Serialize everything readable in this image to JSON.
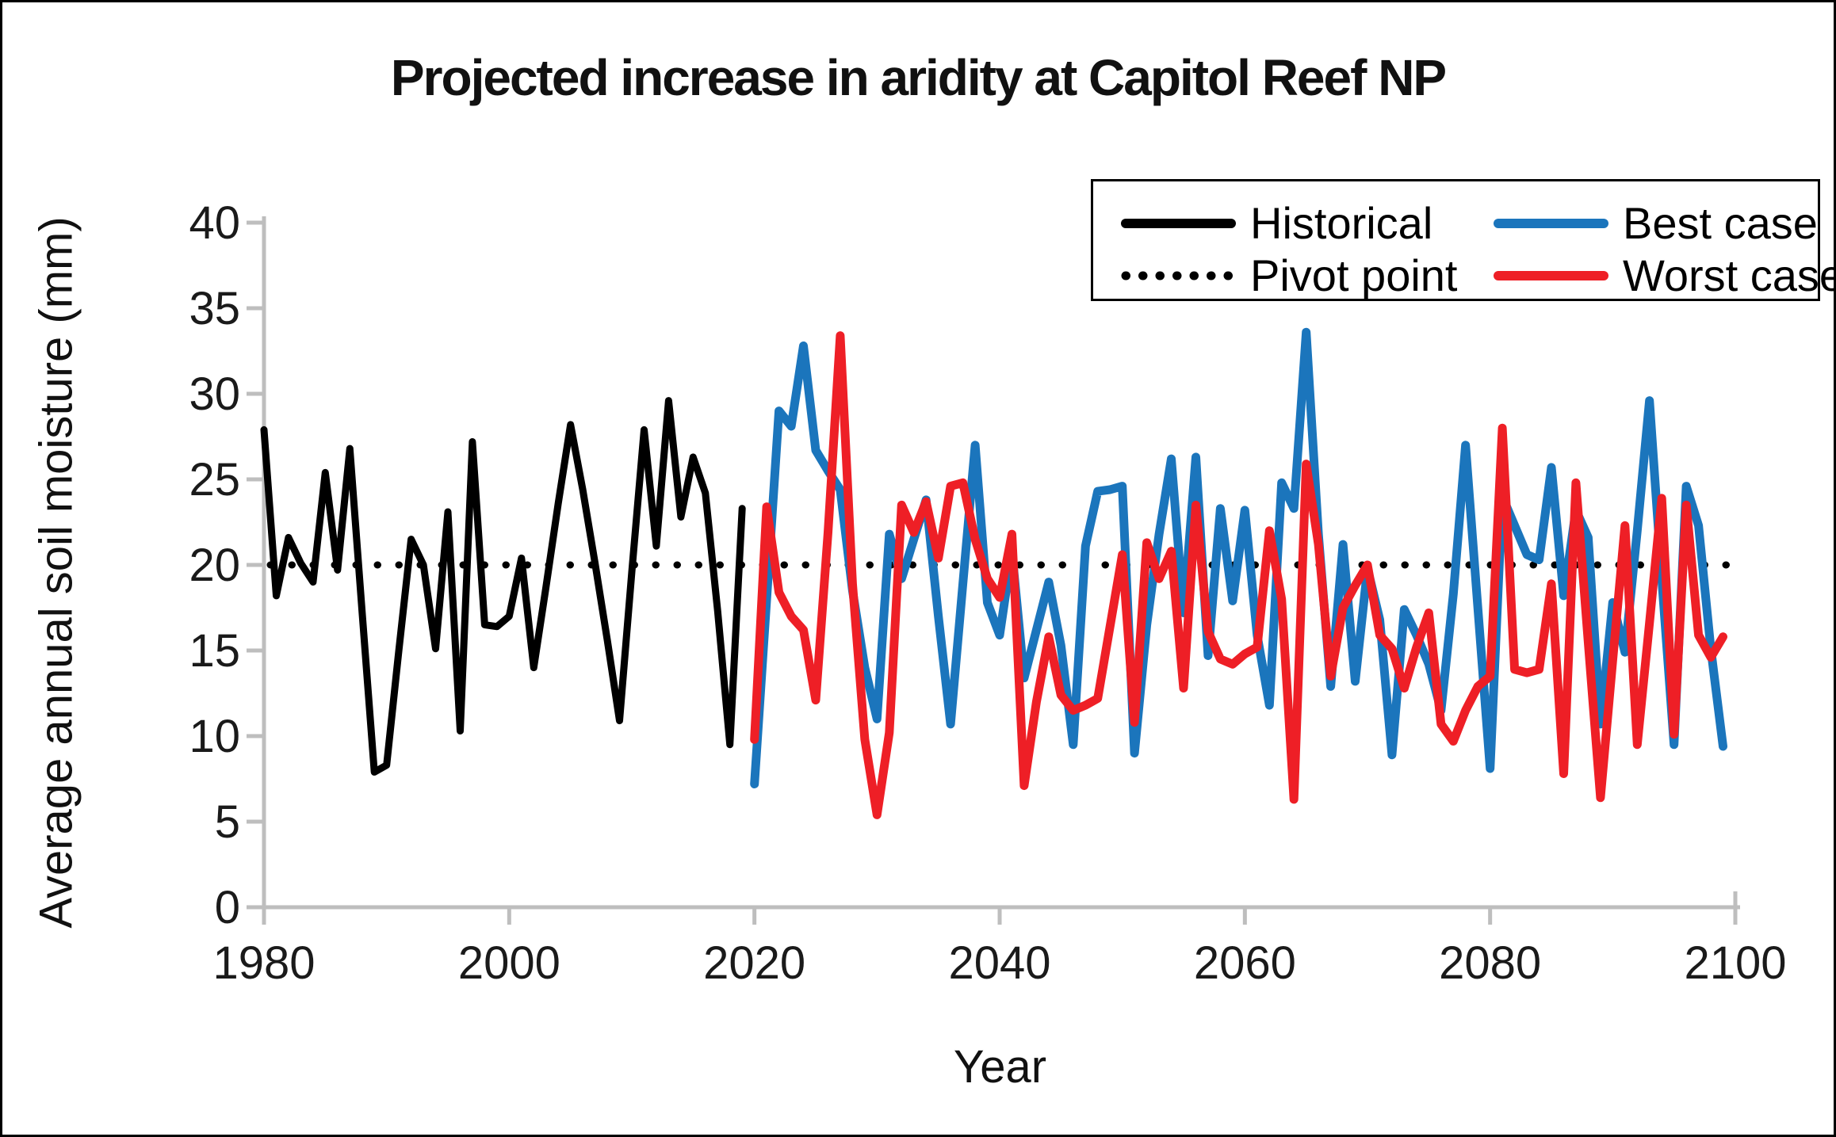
{
  "header": {
    "title": "Projected increase in aridity at Capitol Reef NP"
  },
  "axes": {
    "y_title": "Average annual soil moisture (mm)",
    "x_title": "Year"
  },
  "chart_data": {
    "type": "line",
    "title": "Projected increase in aridity at Capitol Reef NP",
    "xlabel": "Year",
    "ylabel": "Average annual soil moisture (mm)",
    "xlim": [
      1980,
      2100
    ],
    "ylim": [
      0,
      40
    ],
    "x_ticks": [
      1980,
      2000,
      2020,
      2040,
      2060,
      2080,
      2100
    ],
    "y_ticks": [
      0,
      5,
      10,
      15,
      20,
      25,
      30,
      35,
      40
    ],
    "grid": false,
    "legend_position": "top-right",
    "axis_color": "#bebebe",
    "tick_label_color": "#1a1a1a",
    "series": [
      {
        "name": "Historical",
        "color": "#000000",
        "style": "solid",
        "start_year": 1980,
        "values": [
          27.9,
          18.2,
          21.6,
          20.1,
          19.0,
          25.4,
          19.7,
          26.8,
          17.3,
          7.9,
          8.3,
          15.0,
          21.5,
          20.0,
          15.1,
          23.1,
          10.3,
          27.2,
          16.5,
          16.4,
          17.0,
          20.4,
          14.0,
          18.7,
          23.6,
          28.2,
          24.4,
          20.1,
          15.6,
          10.9,
          19.6,
          27.9,
          21.1,
          29.6,
          22.8,
          26.3,
          24.2,
          17.3,
          9.5,
          23.3
        ]
      },
      {
        "name": "Pivot point",
        "color": "#000000",
        "style": "dotted",
        "value": 20
      },
      {
        "name": "Best case",
        "color": "#1b75bc",
        "style": "solid",
        "start_year": 2020,
        "values": [
          7.2,
          18.0,
          29.0,
          28.1,
          32.8,
          26.7,
          25.5,
          24.4,
          18.5,
          14.0,
          11.0,
          21.8,
          19.2,
          21.5,
          23.8,
          17.0,
          10.7,
          18.9,
          27.0,
          17.8,
          15.9,
          20.8,
          13.4,
          16.2,
          19.0,
          15.3,
          9.5,
          21.1,
          24.3,
          24.4,
          24.6,
          9.0,
          16.5,
          21.8,
          26.2,
          17.2,
          26.3,
          14.7,
          23.3,
          17.9,
          23.2,
          15.9,
          11.8,
          24.8,
          23.3,
          33.6,
          21.8,
          12.9,
          21.2,
          13.2,
          19.8,
          16.8,
          8.9,
          17.4,
          15.9,
          14.2,
          11.5,
          18.3,
          27.0,
          17.5,
          8.1,
          24.0,
          22.3,
          20.6,
          20.3,
          25.7,
          18.2,
          23.2,
          21.6,
          10.7,
          17.8,
          14.9,
          22.0,
          29.6,
          19.2,
          9.5,
          24.6,
          22.3,
          15.1,
          9.4
        ]
      },
      {
        "name": "Worst case",
        "color": "#ee1f26",
        "style": "solid",
        "start_year": 2020,
        "values": [
          9.8,
          23.4,
          18.4,
          17.0,
          16.2,
          12.1,
          21.9,
          33.4,
          18.9,
          9.8,
          5.4,
          10.2,
          23.5,
          21.9,
          23.7,
          20.4,
          24.6,
          24.8,
          21.5,
          19.2,
          18.1,
          21.8,
          7.1,
          12.0,
          15.8,
          12.4,
          11.5,
          11.8,
          12.2,
          16.4,
          20.6,
          10.8,
          21.3,
          19.2,
          20.8,
          12.8,
          23.5,
          16.1,
          14.5,
          14.2,
          14.8,
          15.2,
          22.0,
          18.0,
          6.3,
          25.9,
          21.2,
          13.5,
          17.5,
          18.8,
          20.0,
          15.9,
          15.1,
          12.8,
          15.2,
          17.2,
          10.7,
          9.7,
          11.5,
          12.9,
          13.5,
          28.0,
          13.9,
          13.7,
          13.9,
          18.9,
          7.8,
          24.8,
          15.5,
          6.4,
          14.4,
          22.3,
          9.5,
          16.6,
          23.9,
          10.1,
          23.5,
          15.9,
          14.6,
          15.8
        ]
      }
    ]
  }
}
